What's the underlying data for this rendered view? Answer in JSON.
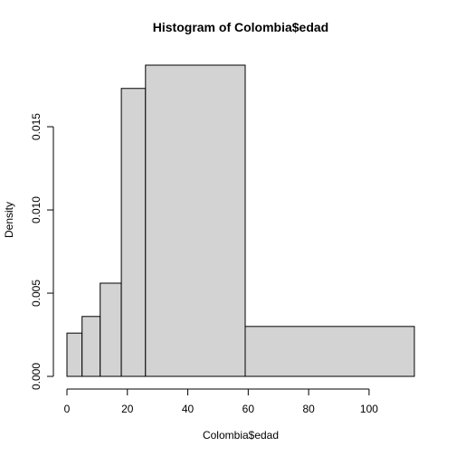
{
  "chart_data": {
    "type": "histogram",
    "title": "Histogram of Colombia$edad",
    "xlabel": "Colombia$edad",
    "ylabel": "Density",
    "xlim": [
      0,
      115
    ],
    "ylim": [
      0,
      0.0187
    ],
    "x_ticks": [
      0,
      20,
      40,
      60,
      80,
      100
    ],
    "x_tick_labels": [
      "0",
      "20",
      "40",
      "60",
      "80",
      "100"
    ],
    "y_ticks": [
      0,
      0.005,
      0.01,
      0.015
    ],
    "y_tick_labels": [
      "0.000",
      "0.005",
      "0.010",
      "0.015"
    ],
    "grid": false,
    "bins": [
      {
        "start": 0,
        "end": 5,
        "density": 0.0026
      },
      {
        "start": 5,
        "end": 11,
        "density": 0.0036
      },
      {
        "start": 11,
        "end": 18,
        "density": 0.0056
      },
      {
        "start": 18,
        "end": 26,
        "density": 0.0173
      },
      {
        "start": 26,
        "end": 59,
        "density": 0.0187
      },
      {
        "start": 59,
        "end": 115,
        "density": 0.003
      }
    ],
    "colors": {
      "bar_fill": "#d3d3d3",
      "bar_stroke": "#000000"
    }
  }
}
